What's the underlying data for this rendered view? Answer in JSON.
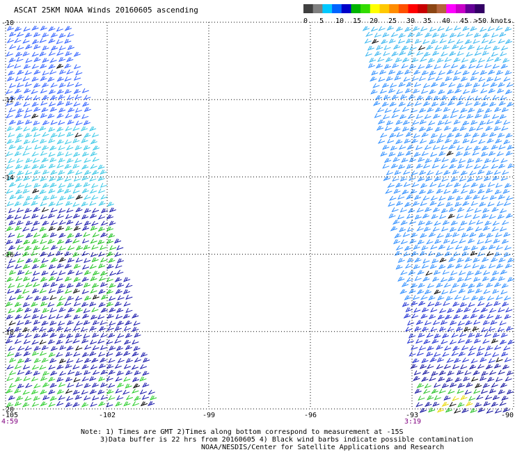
{
  "title": "ASCAT 25KM NOAA Winds 20160605 ascending",
  "colorbar": {
    "labels": [
      "0",
      "5",
      "10",
      "15",
      "20",
      "25",
      "30",
      "35",
      "40",
      "45",
      ">50 knots"
    ],
    "colors": [
      "#404040",
      "#808080",
      "#00c8ff",
      "#0064ff",
      "#0000c8",
      "#00b400",
      "#32dc00",
      "#ffff00",
      "#ffc800",
      "#ff8c00",
      "#ff5000",
      "#ff0000",
      "#c80000",
      "#8b4513",
      "#b4643c",
      "#ff00ff",
      "#c800c8",
      "#640096",
      "#320064"
    ]
  },
  "axes": {
    "x_ticks": [
      "-105",
      "-102",
      "-99",
      "-96",
      "-93",
      "-90"
    ],
    "y_ticks": [
      "-10",
      "-12",
      "-14",
      "-16",
      "-18",
      "-20"
    ],
    "x_range": [
      -105,
      -90
    ],
    "y_range": [
      -20,
      -10
    ]
  },
  "times": {
    "left": "4:59",
    "right": "3:19"
  },
  "notes": {
    "line1": "Note: 1) Times are GMT 2)Times along bottom correspond to measurement at -15S",
    "line2": "3)Data buffer is 22 hrs from 20160605 4) Black wind barbs indicate possible contamination",
    "line3": "NOAA/NESDIS/Center for Satellite Applications and Research"
  },
  "swaths": {
    "west": {
      "description_color_bands": [
        {
          "lat_from": -10,
          "lat_to": -12.6,
          "color": "#2a5cff"
        },
        {
          "lat_from": -12.6,
          "lat_to": -14.8,
          "color": "#2fc7e8"
        },
        {
          "lat_from": -14.8,
          "lat_to": -20,
          "color": "#1010a8"
        }
      ]
    },
    "east": {
      "color": "#2a8cff"
    }
  }
}
